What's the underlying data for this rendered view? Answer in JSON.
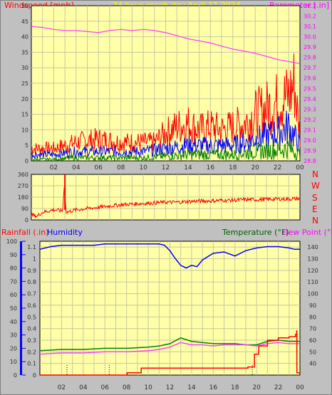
{
  "header": {
    "windspeed_label": "Windspeed [mph]",
    "title": "24 hour graph day   April 11 2024",
    "barometer_label": "Barometer [.in]"
  },
  "colors": {
    "background": "#c0c0c0",
    "plot_bg": "#ffffa8",
    "grid": "#c8c8a0",
    "wind_gust": "#ff0000",
    "wind_avg": "#0000ff",
    "wind_min": "#008000",
    "barometer": "#ff40ff",
    "direction": "#ff0000",
    "humidity": "#0000ff",
    "temperature": "#008000",
    "dewpoint": "#ff40ff",
    "rainfall": "#ff0000",
    "label_red": "#ff0000",
    "label_blue": "#0000ff",
    "label_green": "#006000",
    "label_magenta": "#ff00ff",
    "title_yellow": "#ffff00",
    "tick_text": "#303030"
  },
  "compass": [
    "W",
    "S",
    "E",
    "N"
  ],
  "compass_top": "N",
  "lower_labels": {
    "rainfall": "Rainfall (.in)",
    "humidity": "Humidity",
    "temperature": "Temperature (°F)",
    "dewpoint": "Dew Point (°F)"
  },
  "chart_data": [
    {
      "type": "line",
      "panel": "wind-barometer",
      "x_ticks": [
        "02",
        "04",
        "06",
        "08",
        "10",
        "12",
        "14",
        "16",
        "18",
        "20",
        "22",
        "00"
      ],
      "xlim": [
        0,
        24
      ],
      "ylim_left": [
        0,
        50
      ],
      "left_ticks": [
        0,
        5,
        10,
        15,
        20,
        25,
        30,
        35,
        40,
        45,
        50
      ],
      "ylim_right": [
        28.8,
        30.3
      ],
      "right_ticks": [
        28.8,
        28.9,
        29.0,
        29.1,
        29.2,
        29.3,
        29.4,
        29.5,
        29.6,
        29.7,
        29.8,
        29.9,
        30.0,
        30.1,
        30.2,
        30.3
      ],
      "grid": true,
      "series": [
        {
          "name": "Windspeed",
          "color": "#ff0000",
          "axis": "left",
          "x": [
            0,
            2,
            4,
            6,
            8,
            10,
            11,
            12,
            13,
            14,
            15,
            16,
            17,
            18,
            19,
            20,
            21,
            22,
            23,
            23.5,
            24
          ],
          "values": [
            4,
            4,
            6,
            7,
            6,
            6,
            6,
            9,
            11,
            12,
            10,
            11,
            10,
            11,
            12,
            15,
            17,
            19,
            21,
            25,
            8
          ]
        },
        {
          "color": "#0000ff",
          "axis": "left",
          "x": [
            0,
            2,
            4,
            6,
            8,
            10,
            12,
            14,
            16,
            18,
            20,
            22,
            23,
            24
          ],
          "values": [
            2,
            2,
            3,
            3,
            3,
            3,
            4,
            5,
            5,
            5,
            7,
            9,
            11,
            5
          ]
        },
        {
          "color": "#008000",
          "axis": "left",
          "x": [
            0,
            2,
            4,
            6,
            8,
            10,
            12,
            14,
            16,
            18,
            20,
            22,
            23,
            24
          ],
          "values": [
            0.5,
            0.5,
            1,
            1,
            1,
            1,
            1.5,
            2,
            2,
            2,
            3,
            3.5,
            4,
            2
          ]
        },
        {
          "name": "Barometer",
          "color": "#ff40ff",
          "axis": "right",
          "x": [
            0,
            1,
            2,
            3,
            4,
            5,
            6,
            7,
            8,
            9,
            10,
            11,
            12,
            13,
            14,
            15,
            16,
            17,
            18,
            19,
            20,
            21,
            22,
            23,
            24
          ],
          "values": [
            30.1,
            30.09,
            30.07,
            30.06,
            30.06,
            30.05,
            30.04,
            30.06,
            30.07,
            30.06,
            30.07,
            30.06,
            30.04,
            30.01,
            29.98,
            29.96,
            29.94,
            29.91,
            29.88,
            29.86,
            29.84,
            29.81,
            29.78,
            29.76,
            29.74
          ]
        }
      ]
    },
    {
      "type": "line",
      "panel": "wind-direction",
      "x_ticks": [],
      "xlim": [
        0,
        24
      ],
      "ylim": [
        0,
        360
      ],
      "y_ticks": [
        0,
        90,
        180,
        270,
        360
      ],
      "grid": true,
      "series": [
        {
          "color": "#ff0000",
          "x": [
            0,
            0.5,
            1,
            2,
            2.8,
            3,
            3.05,
            3.1,
            4,
            5,
            6,
            7,
            8,
            9,
            10,
            11,
            12,
            13,
            14,
            15,
            16,
            17,
            18,
            19,
            20,
            21,
            22,
            23,
            24
          ],
          "values": [
            40,
            30,
            60,
            80,
            70,
            360,
            80,
            60,
            80,
            90,
            100,
            110,
            120,
            125,
            130,
            135,
            140,
            140,
            145,
            150,
            150,
            155,
            155,
            160,
            160,
            162,
            165,
            165,
            168
          ]
        }
      ]
    },
    {
      "type": "line",
      "panel": "rain-humidity-temperature",
      "x_ticks": [
        "02",
        "04",
        "06",
        "08",
        "10",
        "12",
        "14",
        "16",
        "18",
        "20",
        "22",
        "00"
      ],
      "xlim": [
        0,
        24
      ],
      "ylim_humidity": [
        0,
        100
      ],
      "humidity_ticks": [
        0,
        10,
        20,
        30,
        40,
        50,
        60,
        70,
        80,
        90,
        100
      ],
      "ylim_rain": [
        0,
        1.15
      ],
      "rain_ticks": [
        0,
        0.1,
        0.2,
        0.3,
        0.4,
        0.5,
        0.6,
        0.7,
        0.8,
        0.9,
        1,
        1.1
      ],
      "ylim_temperature": [
        30,
        145
      ],
      "temperature_ticks": [
        40,
        50,
        60,
        70,
        80,
        90,
        100,
        110,
        120,
        130,
        140
      ],
      "grid": true,
      "series": [
        {
          "name": "Humidity",
          "color": "#0000ff",
          "axis": "humidity",
          "x": [
            0,
            1,
            2,
            3,
            4,
            5,
            6,
            7,
            8,
            9,
            10,
            11,
            11.5,
            12,
            12.5,
            13,
            13.5,
            14,
            14.5,
            15,
            16,
            17,
            18,
            19,
            20,
            21,
            22,
            23,
            23.5,
            24
          ],
          "values": [
            94,
            96,
            97,
            97,
            97,
            97,
            98,
            98,
            98,
            98,
            98,
            98,
            97,
            93,
            87,
            82,
            80,
            82,
            81,
            86,
            91,
            92,
            89,
            93,
            95,
            96,
            96,
            95,
            94,
            94
          ]
        },
        {
          "name": "Temperature",
          "color": "#008000",
          "axis": "temperature",
          "x": [
            0,
            2,
            4,
            6,
            8,
            10,
            11,
            12,
            13,
            14,
            15,
            16,
            17,
            18,
            19,
            20,
            21,
            22,
            23,
            24
          ],
          "values": [
            51,
            52,
            52,
            53,
            53,
            54,
            55,
            57,
            62,
            59,
            58,
            57,
            57,
            57,
            56,
            56,
            59,
            60,
            59,
            59
          ]
        },
        {
          "name": "Dew Point",
          "color": "#ff40ff",
          "axis": "temperature",
          "x": [
            0,
            2,
            4,
            6,
            8,
            10,
            11,
            12,
            13,
            14,
            15,
            16,
            17,
            18,
            19,
            20,
            21,
            22,
            23,
            24
          ],
          "values": [
            48,
            49,
            49,
            50,
            50,
            51,
            52,
            54,
            58,
            56,
            56,
            55,
            56,
            56,
            56,
            55,
            57,
            58,
            57,
            57
          ]
        },
        {
          "name": "Rainfall",
          "color": "#ff0000",
          "axis": "rain",
          "x": [
            0,
            8,
            8.05,
            9.3,
            9.35,
            10,
            12,
            14,
            16,
            18,
            19.2,
            19.8,
            20.2,
            21,
            22,
            23,
            23.6,
            23.7,
            23.72,
            24
          ],
          "values": [
            0,
            0,
            0.02,
            0.02,
            0.06,
            0.06,
            0.06,
            0.06,
            0.06,
            0.06,
            0.07,
            0.18,
            0.25,
            0.3,
            0.32,
            0.33,
            0.35,
            0.38,
            0.02,
            0.02
          ]
        }
      ]
    }
  ]
}
